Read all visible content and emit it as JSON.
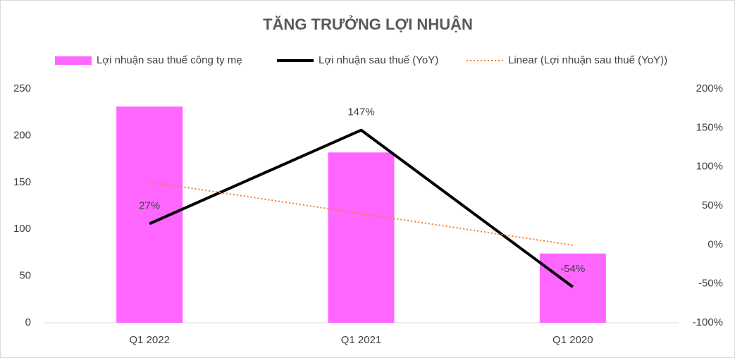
{
  "chart_data": {
    "type": "combo",
    "title": "TĂNG TRƯỞNG LỢI NHUẬN",
    "categories": [
      "Q1 2022",
      "Q1 2021",
      "Q1 2020"
    ],
    "series": [
      {
        "name": "Lợi nhuận sau thuế công ty mẹ",
        "type": "bar",
        "axis": "y",
        "color": "#ff66ff",
        "values": [
          231,
          182,
          74
        ]
      },
      {
        "name": "Lợi nhuận sau thuế (YoY)",
        "type": "line",
        "axis": "y2",
        "color": "#000000",
        "values": [
          27,
          147,
          -54
        ],
        "value_labels": [
          "27%",
          "147%",
          "-54%"
        ]
      },
      {
        "name": "Linear (Lợi nhuận sau thuế (YoY))",
        "type": "line",
        "axis": "y2",
        "color": "#ed7d31",
        "style": "dotted",
        "values": [
          80.5,
          40,
          -0.5
        ]
      }
    ],
    "ylim": [
      0,
      250
    ],
    "yticks": [
      0,
      50,
      100,
      150,
      200,
      250
    ],
    "y2lim": [
      -100,
      200
    ],
    "y2ticks": [
      {
        "value": -100,
        "label": "-100%"
      },
      {
        "value": -50,
        "label": "-50%"
      },
      {
        "value": 0,
        "label": "0%"
      },
      {
        "value": 50,
        "label": "50%"
      },
      {
        "value": 100,
        "label": "100%"
      },
      {
        "value": 150,
        "label": "150%"
      },
      {
        "value": 200,
        "label": "200%"
      }
    ],
    "grid": false,
    "legend": "top"
  }
}
